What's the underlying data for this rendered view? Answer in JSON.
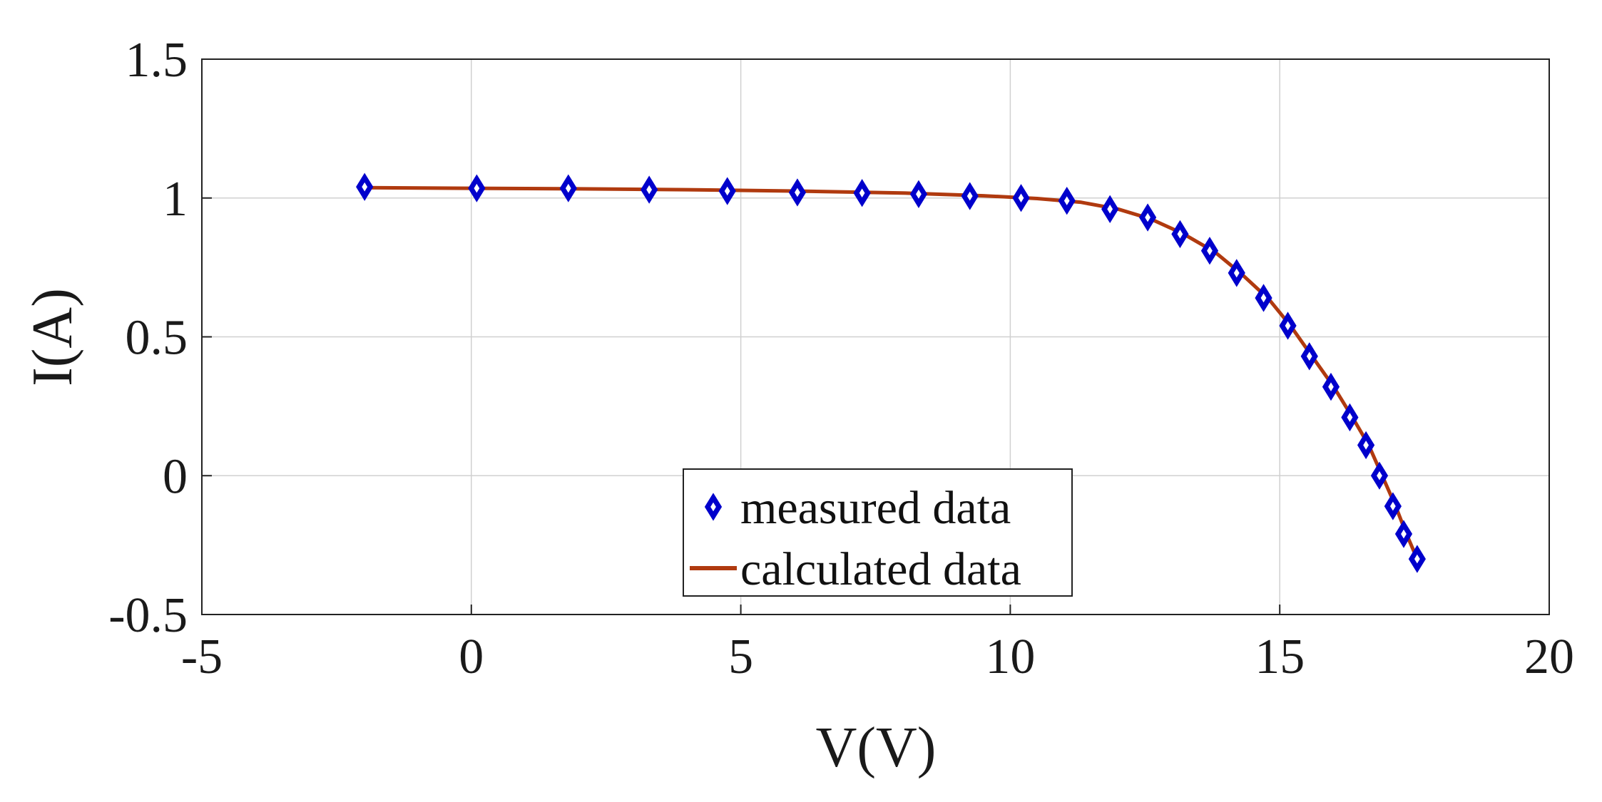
{
  "chart_data": {
    "type": "scatter",
    "title": "",
    "xlabel": "V(V)",
    "ylabel": "I(A)",
    "xlim": [
      -5,
      20
    ],
    "ylim": [
      -0.5,
      1.5
    ],
    "xticks": [
      -5,
      0,
      5,
      10,
      15,
      20
    ],
    "yticks": [
      -0.5,
      0,
      0.5,
      1,
      1.5
    ],
    "xtick_labels": [
      "-5",
      "0",
      "5",
      "10",
      "15",
      "20"
    ],
    "ytick_labels": [
      "-0.5",
      "0",
      "0.5",
      "1",
      "1.5"
    ],
    "grid": true,
    "legend_position": "bottom-center",
    "series": [
      {
        "name": "measured data",
        "kind": "marker",
        "marker": "diamond",
        "color": "#0000cc",
        "x": [
          -1.98,
          0.1,
          1.8,
          3.3,
          4.75,
          6.05,
          7.25,
          8.3,
          9.25,
          10.2,
          11.05,
          11.85,
          12.55,
          13.15,
          13.7,
          14.2,
          14.7,
          15.15,
          15.55,
          15.95,
          16.3,
          16.6,
          16.85,
          17.1,
          17.3,
          17.55
        ],
        "y": [
          1.04,
          1.035,
          1.035,
          1.03,
          1.025,
          1.02,
          1.018,
          1.014,
          1.007,
          1.0,
          0.99,
          0.96,
          0.93,
          0.87,
          0.81,
          0.73,
          0.64,
          0.54,
          0.43,
          0.32,
          0.21,
          0.11,
          0.0,
          -0.11,
          -0.21,
          -0.3
        ]
      },
      {
        "name": "calculated data",
        "kind": "line",
        "color": "#b03a0f",
        "x": [
          -1.98,
          0.0,
          2.0,
          4.0,
          6.0,
          8.0,
          9.5,
          10.5,
          11.3,
          12.0,
          12.6,
          13.2,
          13.8,
          14.3,
          14.8,
          15.2,
          15.6,
          16.0,
          16.35,
          16.65,
          16.9,
          17.15,
          17.35,
          17.55
        ],
        "y": [
          1.037,
          1.035,
          1.033,
          1.03,
          1.025,
          1.018,
          1.008,
          0.998,
          0.985,
          0.96,
          0.925,
          0.872,
          0.805,
          0.725,
          0.635,
          0.54,
          0.43,
          0.32,
          0.21,
          0.11,
          0.0,
          -0.11,
          -0.21,
          -0.3
        ]
      }
    ]
  },
  "colors": {
    "grid": "#d0d0d0",
    "axis": "#222222",
    "marker": "#0000cc",
    "line": "#b03a0f"
  }
}
